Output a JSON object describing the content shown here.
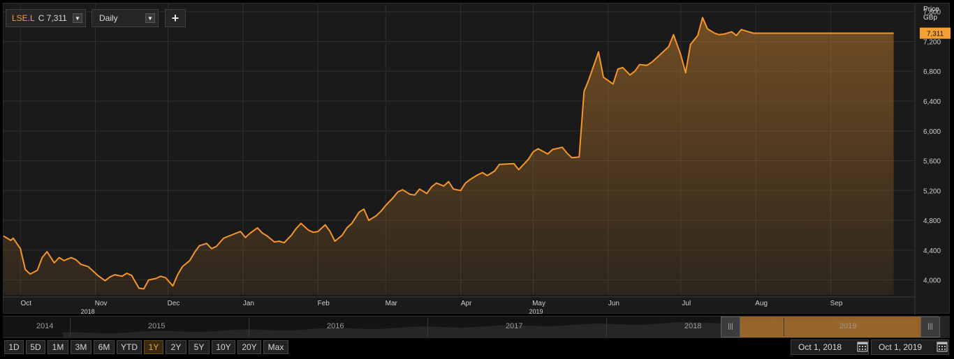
{
  "toolbar": {
    "symbol": "LSE.L",
    "last_label": "C 7,311",
    "interval": "Daily",
    "add_label": "+"
  },
  "axis": {
    "title_line1": "Price",
    "title_line2": "GBp",
    "current_price_label": "7,311"
  },
  "navigator": {
    "years": [
      "2014",
      "2015",
      "2016",
      "2017",
      "2018",
      "2019"
    ]
  },
  "range_buttons": [
    "1D",
    "5D",
    "1M",
    "3M",
    "6M",
    "YTD",
    "1Y",
    "2Y",
    "5Y",
    "10Y",
    "20Y",
    "Max"
  ],
  "active_range": "1Y",
  "date_from": "Oct 1, 2018",
  "date_to": "Oct 1, 2019",
  "colors": {
    "line": "#f5962b",
    "fill": "#b8772c",
    "background": "#1a1a1a",
    "grid": "#2e2e2e",
    "price_tag": "#f5a033"
  },
  "icons": {
    "dropdown": "chevron-down-icon",
    "calendar": "calendar-icon",
    "navigator_handle": "grip-icon"
  },
  "chart_data": {
    "type": "area",
    "y_unit": "GBp",
    "ylim": [
      3800,
      7700
    ],
    "y_ticks": [
      "4,000",
      "4,400",
      "4,800",
      "5,200",
      "5,600",
      "6,000",
      "6,400",
      "6,800",
      "7,200",
      "7,600"
    ],
    "x_ticks": [
      "Oct",
      "Nov",
      "Dec",
      "Jan",
      "Feb",
      "Mar",
      "Apr",
      "May",
      "Jun",
      "Jul",
      "Aug",
      "Sep"
    ],
    "x_year_labels": [
      "2018",
      "2019"
    ],
    "grid": true,
    "series": [
      {
        "x": [
          "2018-09-24",
          "2018-09-27",
          "2018-09-28",
          "2018-10-01",
          "2018-10-03",
          "2018-10-05",
          "2018-10-08",
          "2018-10-10",
          "2018-10-12",
          "2018-10-15",
          "2018-10-17",
          "2018-10-19",
          "2018-10-22",
          "2018-10-24",
          "2018-10-26",
          "2018-10-29",
          "2018-10-31",
          "2018-11-02",
          "2018-11-05",
          "2018-11-07",
          "2018-11-09",
          "2018-11-12",
          "2018-11-14",
          "2018-11-16",
          "2018-11-19",
          "2018-11-21",
          "2018-11-23",
          "2018-11-26",
          "2018-11-28",
          "2018-11-30",
          "2018-12-03",
          "2018-12-05",
          "2018-12-07",
          "2018-12-10",
          "2018-12-12",
          "2018-12-14",
          "2018-12-17",
          "2018-12-19",
          "2018-12-21",
          "2018-12-24",
          "2018-12-27",
          "2018-12-31",
          "2019-01-02",
          "2019-01-04",
          "2019-01-07",
          "2019-01-09",
          "2019-01-11",
          "2019-01-14",
          "2019-01-16",
          "2019-01-18",
          "2019-01-21",
          "2019-01-23",
          "2019-01-25",
          "2019-01-28",
          "2019-01-30",
          "2019-02-01",
          "2019-02-04",
          "2019-02-06",
          "2019-02-08",
          "2019-02-11",
          "2019-02-13",
          "2019-02-15",
          "2019-02-18",
          "2019-02-20",
          "2019-02-22",
          "2019-02-25",
          "2019-02-27",
          "2019-03-01",
          "2019-03-04",
          "2019-03-06",
          "2019-03-08",
          "2019-03-11",
          "2019-03-13",
          "2019-03-15",
          "2019-03-18",
          "2019-03-20",
          "2019-03-22",
          "2019-03-25",
          "2019-03-27",
          "2019-03-29",
          "2019-04-01",
          "2019-04-03",
          "2019-04-05",
          "2019-04-08",
          "2019-04-10",
          "2019-04-12",
          "2019-04-15",
          "2019-04-17",
          "2019-04-23",
          "2019-04-25",
          "2019-04-29",
          "2019-05-01",
          "2019-05-03",
          "2019-05-07",
          "2019-05-09",
          "2019-05-13",
          "2019-05-15",
          "2019-05-17",
          "2019-05-20",
          "2019-05-22",
          "2019-05-24",
          "2019-05-28",
          "2019-05-30",
          "2019-06-03",
          "2019-06-05",
          "2019-06-07",
          "2019-06-10",
          "2019-06-12",
          "2019-06-14",
          "2019-06-17",
          "2019-06-19",
          "2019-06-21",
          "2019-06-24",
          "2019-06-26",
          "2019-06-28",
          "2019-07-01",
          "2019-07-03",
          "2019-07-05",
          "2019-07-08",
          "2019-07-10",
          "2019-07-12",
          "2019-07-15",
          "2019-07-17",
          "2019-07-19",
          "2019-07-22",
          "2019-07-24",
          "2019-07-26",
          "2019-07-29",
          "2019-07-31",
          "2019-08-02",
          "2019-08-05",
          "2019-08-07",
          "2019-08-09",
          "2019-08-12",
          "2019-08-14",
          "2019-08-16",
          "2019-08-19",
          "2019-08-21",
          "2019-08-23",
          "2019-08-27",
          "2019-08-29",
          "2019-09-02",
          "2019-09-04",
          "2019-09-06",
          "2019-09-09",
          "2019-09-11",
          "2019-09-13",
          "2019-09-16",
          "2019-09-18",
          "2019-09-20",
          "2019-09-23",
          "2019-09-25",
          "2019-09-27"
        ],
        "values": [
          4590,
          4530,
          4560,
          4420,
          4140,
          4080,
          4130,
          4300,
          4380,
          4230,
          4300,
          4260,
          4300,
          4270,
          4210,
          4180,
          4120,
          4060,
          3990,
          4040,
          4070,
          4050,
          4090,
          4060,
          3890,
          3880,
          4000,
          4020,
          4050,
          4030,
          3920,
          4070,
          4180,
          4260,
          4370,
          4460,
          4490,
          4420,
          4450,
          4560,
          4600,
          4650,
          4570,
          4630,
          4700,
          4630,
          4590,
          4510,
          4520,
          4500,
          4600,
          4690,
          4760,
          4670,
          4640,
          4650,
          4740,
          4650,
          4520,
          4600,
          4700,
          4760,
          4910,
          4950,
          4800,
          4860,
          4920,
          5000,
          5100,
          5180,
          5210,
          5150,
          5140,
          5220,
          5160,
          5250,
          5300,
          5260,
          5320,
          5220,
          5200,
          5300,
          5350,
          5410,
          5440,
          5400,
          5460,
          5550,
          5560,
          5480,
          5620,
          5720,
          5760,
          5690,
          5750,
          5780,
          5700,
          5640,
          5650,
          6530,
          6690,
          7060,
          6720,
          6630,
          6830,
          6850,
          6750,
          6800,
          6890,
          6880,
          6920,
          6980,
          7070,
          7130,
          7290,
          7020,
          6780,
          7160,
          7280,
          7520,
          7370,
          7310,
          7290,
          7300,
          7330,
          7280,
          7360,
          7330,
          7311,
          7311,
          7311,
          7311,
          7311,
          7311,
          7311,
          7311,
          7311,
          7311,
          7311,
          7311,
          7311,
          7311,
          7311,
          7311,
          7311,
          7311,
          7311,
          7311,
          7311,
          7311,
          7311,
          7311,
          7311
        ],
        "last": 7311
      }
    ]
  }
}
